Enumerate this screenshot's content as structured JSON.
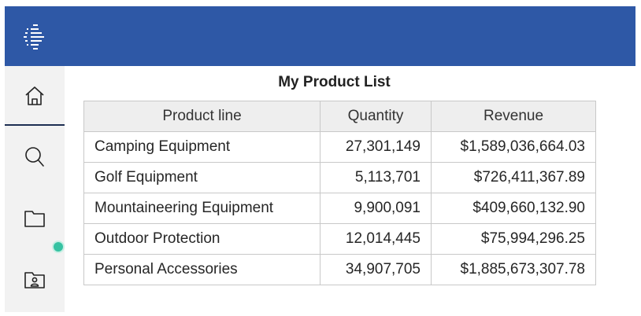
{
  "icons": {
    "menu": "stacked-lines-menu-icon",
    "home": "home-icon",
    "search": "search-icon",
    "content": "folder-icon",
    "my_content": "user-folder-icon"
  },
  "colors": {
    "top_bar": "#2e58a6",
    "sidebar": "#f2f2f2",
    "notification": "#36c2a2",
    "header_row": "#eeeeee"
  },
  "report": {
    "title": "My Product List",
    "columns": [
      "Product line",
      "Quantity",
      "Revenue"
    ],
    "rows": [
      {
        "product_line": "Camping Equipment",
        "quantity": "27,301,149",
        "revenue": "$1,589,036,664.03"
      },
      {
        "product_line": "Golf Equipment",
        "quantity": "5,113,701",
        "revenue": "$726,411,367.89"
      },
      {
        "product_line": "Mountaineering Equipment",
        "quantity": "9,900,091",
        "revenue": "$409,660,132.90"
      },
      {
        "product_line": "Outdoor Protection",
        "quantity": "12,014,445",
        "revenue": "$75,994,296.25"
      },
      {
        "product_line": "Personal Accessories",
        "quantity": "34,907,705",
        "revenue": "$1,885,673,307.78"
      }
    ]
  }
}
